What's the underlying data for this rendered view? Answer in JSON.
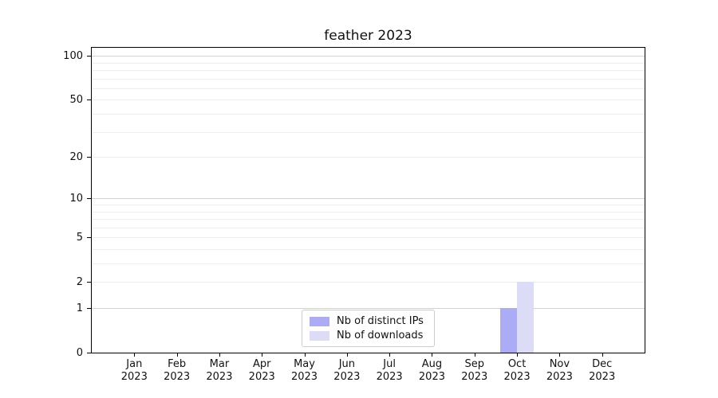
{
  "chart_data": {
    "type": "bar",
    "title": "feather 2023",
    "categories": [
      "Jan",
      "Feb",
      "Mar",
      "Apr",
      "May",
      "Jun",
      "Jul",
      "Aug",
      "Sep",
      "Oct",
      "Nov",
      "Dec"
    ],
    "category_sub": "2023",
    "series": [
      {
        "name": "Nb of distinct IPs",
        "color": "#acacf6",
        "values": [
          0,
          0,
          0,
          0,
          0,
          0,
          0,
          0,
          0,
          1,
          0,
          0
        ]
      },
      {
        "name": "Nb of downloads",
        "color": "#dcdcf7",
        "values": [
          0,
          0,
          0,
          0,
          0,
          0,
          0,
          0,
          0,
          2,
          0,
          0
        ]
      }
    ],
    "y_scale": "log1p",
    "y_ticks": [
      0,
      1,
      2,
      5,
      10,
      20,
      50,
      100
    ],
    "ylim": [
      0,
      115
    ],
    "grid_major": [
      1,
      10,
      100
    ],
    "grid_minor": [
      2,
      3,
      4,
      5,
      6,
      7,
      8,
      9,
      20,
      30,
      40,
      50,
      60,
      70,
      80,
      90
    ],
    "legend_position": "lower center",
    "colors": {
      "bar_distinct_ips": "#acacf6",
      "bar_downloads": "#dcdcf7",
      "grid_major": "#d2d2d2",
      "grid_minor": "#ededed",
      "spine": "#000000",
      "text": "#111111",
      "legend_border": "#cccccc",
      "background": "#ffffff"
    }
  }
}
